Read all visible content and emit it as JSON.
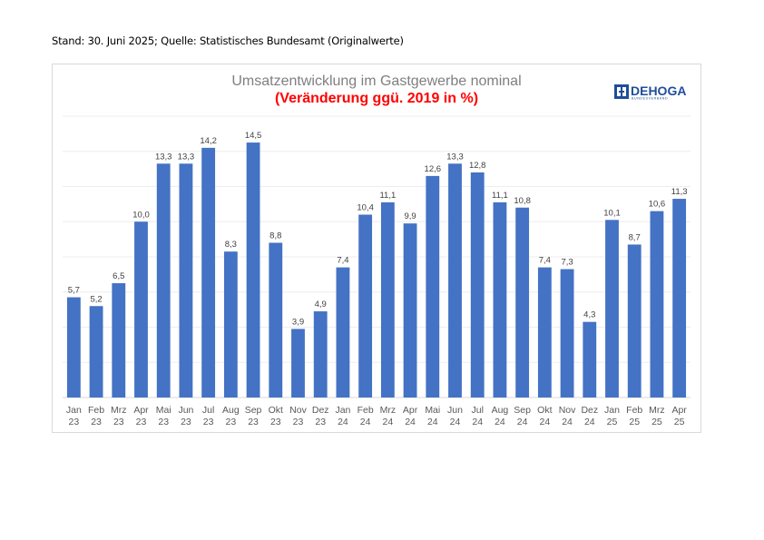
{
  "header": {
    "note": "Stand: 30. Juni 2025; Quelle: Statistisches Bundesamt (Originalwerte)"
  },
  "logo": {
    "name": "DEHOGA",
    "sub": "BUNDESVERBAND",
    "color": "#1f4e99"
  },
  "chart_data": {
    "type": "bar",
    "title": "Umsatzentwicklung im Gastgewerbe nominal",
    "subtitle": "(Veränderung ggü. 2019 in %)",
    "xlabel": "",
    "ylabel": "",
    "ylim": [
      0,
      16
    ],
    "grid": true,
    "bar_color": "#4472c4",
    "categories": [
      [
        "Jan",
        "23"
      ],
      [
        "Feb",
        "23"
      ],
      [
        "Mrz",
        "23"
      ],
      [
        "Apr",
        "23"
      ],
      [
        "Mai",
        "23"
      ],
      [
        "Jun",
        "23"
      ],
      [
        "Jul",
        "23"
      ],
      [
        "Aug",
        "23"
      ],
      [
        "Sep",
        "23"
      ],
      [
        "Okt",
        "23"
      ],
      [
        "Nov",
        "23"
      ],
      [
        "Dez",
        "23"
      ],
      [
        "Jan",
        "24"
      ],
      [
        "Feb",
        "24"
      ],
      [
        "Mrz",
        "24"
      ],
      [
        "Apr",
        "24"
      ],
      [
        "Mai",
        "24"
      ],
      [
        "Jun",
        "24"
      ],
      [
        "Jul",
        "24"
      ],
      [
        "Aug",
        "24"
      ],
      [
        "Sep",
        "24"
      ],
      [
        "Okt",
        "24"
      ],
      [
        "Nov",
        "24"
      ],
      [
        "Dez",
        "24"
      ],
      [
        "Jan",
        "25"
      ],
      [
        "Feb",
        "25"
      ],
      [
        "Mrz",
        "25"
      ],
      [
        "Apr",
        "25"
      ]
    ],
    "values": [
      5.7,
      5.2,
      6.5,
      10.0,
      13.3,
      13.3,
      14.2,
      8.3,
      14.5,
      8.8,
      3.9,
      4.9,
      7.4,
      10.4,
      11.1,
      9.9,
      12.6,
      13.3,
      12.8,
      11.1,
      10.8,
      7.4,
      7.3,
      4.3,
      10.1,
      8.7,
      10.6,
      11.3
    ],
    "data_labels": [
      "5,7",
      "5,2",
      "6,5",
      "10,0",
      "13,3",
      "13,3",
      "14,2",
      "8,3",
      "14,5",
      "8,8",
      "3,9",
      "4,9",
      "7,4",
      "10,4",
      "11,1",
      "9,9",
      "12,6",
      "13,3",
      "12,8",
      "11,1",
      "10,8",
      "7,4",
      "7,3",
      "4,3",
      "10,1",
      "8,7",
      "10,6",
      "11,3"
    ]
  }
}
